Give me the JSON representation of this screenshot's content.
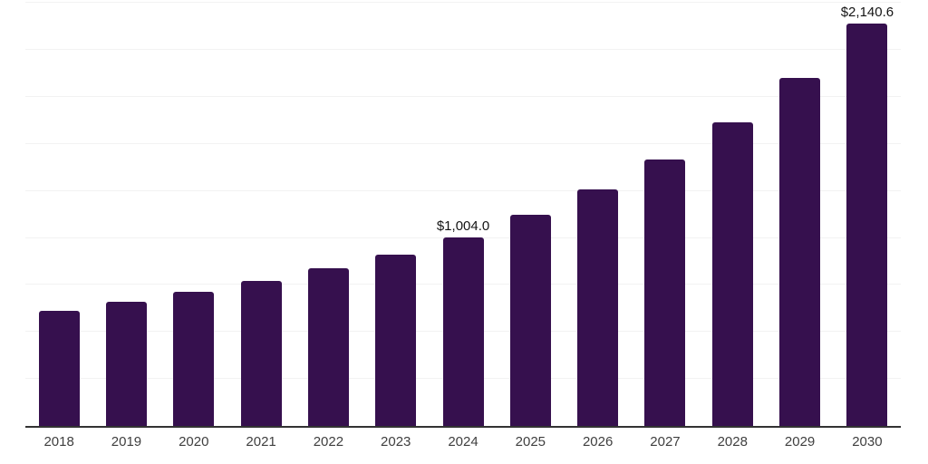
{
  "chart_data": {
    "type": "bar",
    "title": "",
    "xlabel": "",
    "ylabel": "",
    "categories": [
      "2018",
      "2019",
      "2020",
      "2021",
      "2022",
      "2023",
      "2024",
      "2025",
      "2026",
      "2027",
      "2028",
      "2029",
      "2030"
    ],
    "values": [
      610,
      662,
      715,
      771,
      840,
      911,
      1004.0,
      1124,
      1258,
      1417,
      1613,
      1852,
      2140.6
    ],
    "data_labels": [
      null,
      null,
      null,
      null,
      null,
      null,
      "$1,004.0",
      null,
      null,
      null,
      null,
      null,
      "$2,140.6"
    ],
    "ylim": [
      0,
      2265
    ],
    "gridline_interval": 250,
    "grid": true,
    "legend": "none",
    "colors": {
      "bar": "#36104e",
      "axis_line": "#333333",
      "gridline": "#f2f2f2",
      "tick_label": "#3f3f3f",
      "data_label": "#141414",
      "background": "#ffffff"
    }
  }
}
